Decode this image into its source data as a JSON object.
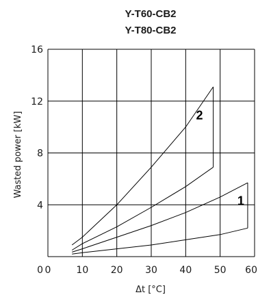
{
  "chart_data": {
    "type": "line",
    "title": [
      "Y-T60-CB2",
      "Y-T80-CB2"
    ],
    "xlabel": "Δt [°C]",
    "ylabel": "Wasted power  [kW]",
    "xlim": [
      0,
      60
    ],
    "ylim": [
      0,
      16
    ],
    "x_ticks": [
      "0",
      "10",
      "20",
      "30",
      "40",
      "50",
      "60"
    ],
    "y_ticks": [
      "0",
      "4",
      "8",
      "12",
      "16"
    ],
    "grid": true,
    "series": [
      {
        "name": "2",
        "x": [
          7,
          10,
          20,
          30,
          40,
          48
        ],
        "y": [
          0.9,
          1.5,
          4.0,
          6.9,
          10.0,
          13.1
        ]
      },
      {
        "name": "2",
        "x": [
          7,
          10,
          20,
          30,
          40,
          48
        ],
        "y": [
          0.5,
          1.0,
          2.3,
          3.8,
          5.4,
          6.9
        ]
      },
      {
        "name": "1",
        "x": [
          7,
          10,
          20,
          30,
          40,
          50,
          58
        ],
        "y": [
          0.35,
          0.6,
          1.5,
          2.4,
          3.4,
          4.6,
          5.7
        ]
      },
      {
        "name": "1",
        "x": [
          7,
          10,
          20,
          30,
          40,
          50,
          58
        ],
        "y": [
          0.2,
          0.3,
          0.6,
          0.9,
          1.3,
          1.7,
          2.2
        ]
      }
    ],
    "closing_segments": [
      {
        "x": [
          48,
          48
        ],
        "y": [
          13.1,
          6.9
        ]
      },
      {
        "x": [
          58,
          58
        ],
        "y": [
          5.7,
          2.2
        ]
      }
    ],
    "curve_labels": [
      {
        "text": "2",
        "x": 44,
        "y": 10.6
      },
      {
        "text": "1",
        "x": 56,
        "y": 4.0
      }
    ]
  }
}
